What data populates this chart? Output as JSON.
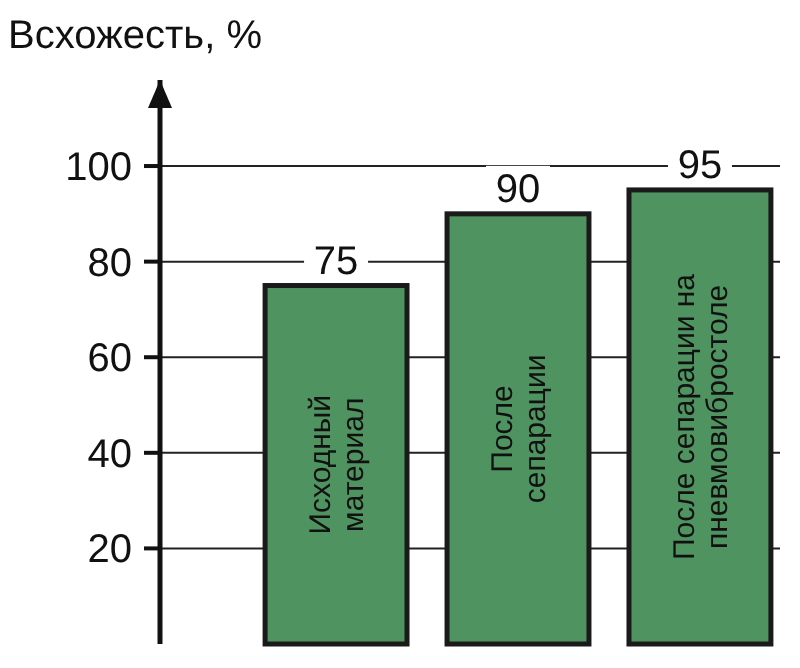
{
  "chart_data": {
    "type": "bar",
    "ylabel": "Всхожесть, %",
    "categories": [
      "Исходный материал",
      "После сепарации",
      "После сепарации на пневмовибростоле"
    ],
    "values": [
      75,
      90,
      95
    ],
    "color": "#4f9460",
    "ylim": [
      0,
      118
    ],
    "yticks": [
      20,
      40,
      60,
      80,
      100
    ],
    "grid": "y",
    "data_labels": true
  }
}
